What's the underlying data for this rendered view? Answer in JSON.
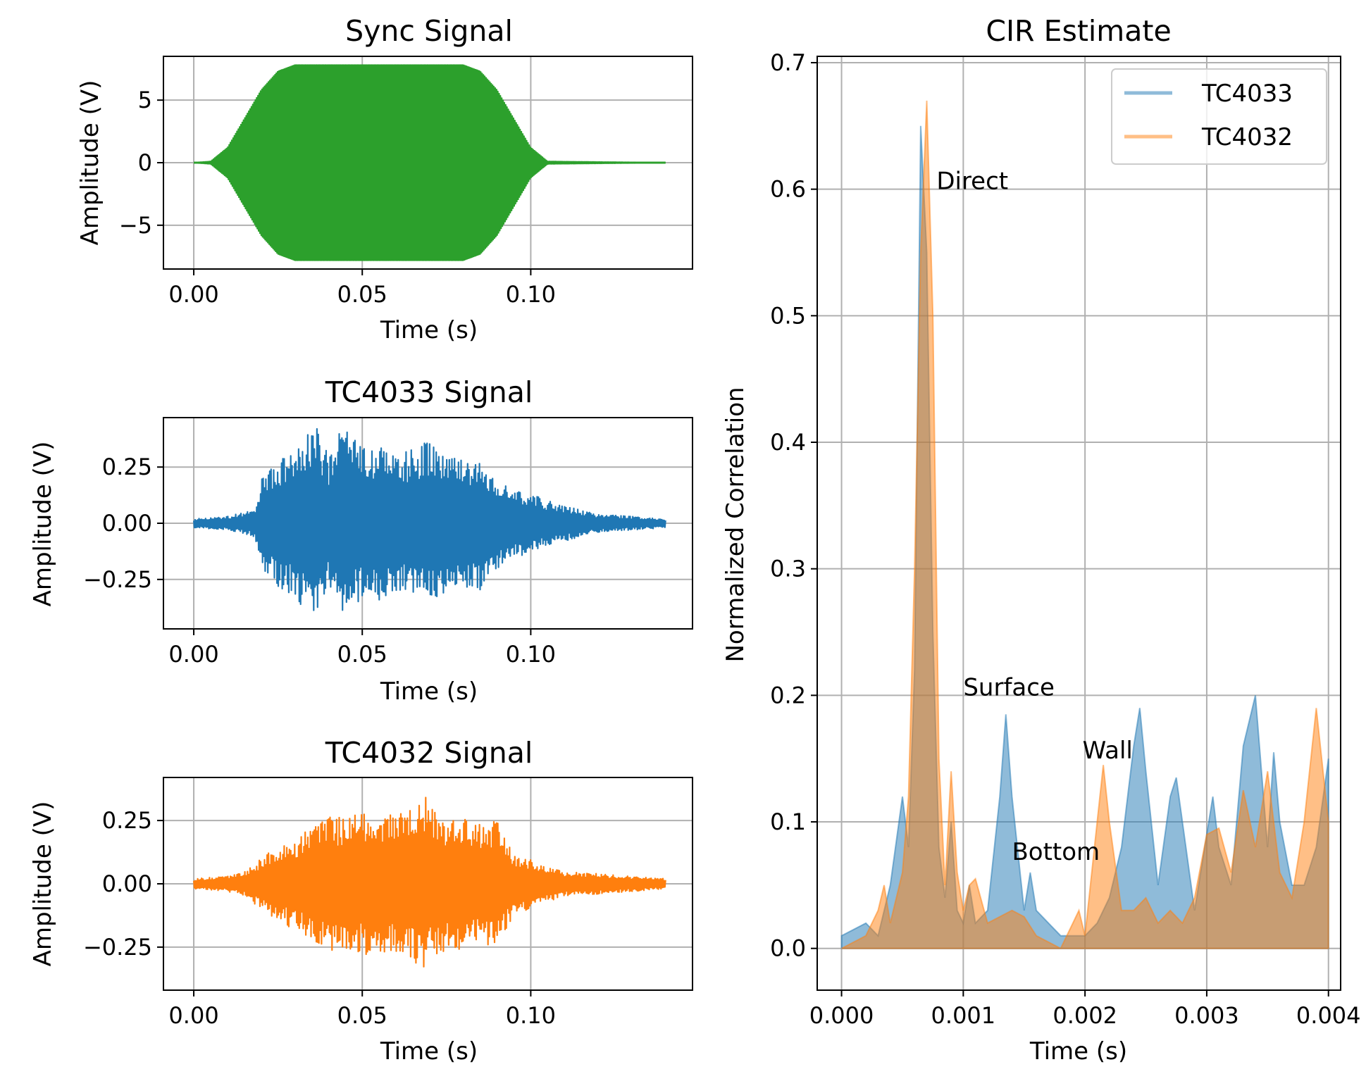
{
  "chart_data": [
    {
      "id": "sync",
      "type": "line",
      "title": "Sync Signal",
      "xlabel": "Time (s)",
      "ylabel": "Amplitude (V)",
      "xlim": [
        -0.009,
        0.148
      ],
      "ylim": [
        -8.5,
        8.5
      ],
      "xticks": [
        0.0,
        0.05,
        0.1
      ],
      "xtick_labels": [
        "0.00",
        "0.05",
        "0.10"
      ],
      "yticks": [
        5,
        0,
        -5
      ],
      "ytick_labels": [
        "5",
        "0",
        "−5"
      ],
      "grid": true,
      "color": "#2ca02c",
      "series": [
        {
          "name": "Sync",
          "envelope_x": [
            0.0,
            0.005,
            0.01,
            0.015,
            0.02,
            0.025,
            0.03,
            0.08,
            0.085,
            0.09,
            0.095,
            0.1,
            0.105,
            0.14
          ],
          "envelope_y": [
            0.0,
            0.1,
            1.2,
            3.5,
            5.8,
            7.3,
            7.8,
            7.8,
            7.3,
            5.8,
            3.5,
            1.2,
            0.1,
            0.0
          ]
        }
      ]
    },
    {
      "id": "tc4033",
      "type": "line",
      "title": "TC4033 Signal",
      "xlabel": "Time (s)",
      "ylabel": "Amplitude (V)",
      "xlim": [
        -0.009,
        0.148
      ],
      "ylim": [
        -0.47,
        0.47
      ],
      "xticks": [
        0.0,
        0.05,
        0.1
      ],
      "xtick_labels": [
        "0.00",
        "0.05",
        "0.10"
      ],
      "yticks": [
        0.25,
        0.0,
        -0.25
      ],
      "ytick_labels": [
        "0.25",
        "0.00",
        "−0.25"
      ],
      "grid": true,
      "color": "#1f77b4",
      "series": [
        {
          "name": "TC4033",
          "envelope_x": [
            0.0,
            0.01,
            0.018,
            0.02,
            0.025,
            0.03,
            0.036,
            0.04,
            0.044,
            0.05,
            0.056,
            0.06,
            0.065,
            0.07,
            0.075,
            0.08,
            0.085,
            0.09,
            0.095,
            0.1,
            0.105,
            0.11,
            0.115,
            0.12,
            0.13,
            0.14
          ],
          "envelope_y": [
            0.02,
            0.03,
            0.06,
            0.2,
            0.28,
            0.33,
            0.44,
            0.3,
            0.44,
            0.33,
            0.35,
            0.3,
            0.33,
            0.38,
            0.31,
            0.29,
            0.3,
            0.21,
            0.16,
            0.13,
            0.1,
            0.08,
            0.06,
            0.04,
            0.03,
            0.02
          ]
        }
      ]
    },
    {
      "id": "tc4032",
      "type": "line",
      "title": "TC4032 Signal",
      "xlabel": "Time (s)",
      "ylabel": "Amplitude (V)",
      "xlim": [
        -0.009,
        0.148
      ],
      "ylim": [
        -0.42,
        0.42
      ],
      "xticks": [
        0.0,
        0.05,
        0.1
      ],
      "xtick_labels": [
        "0.00",
        "0.05",
        "0.10"
      ],
      "yticks": [
        0.25,
        0.0,
        -0.25
      ],
      "ytick_labels": [
        "0.25",
        "0.00",
        "−0.25"
      ],
      "grid": true,
      "color": "#ff7f0e",
      "series": [
        {
          "name": "TC4032",
          "envelope_x": [
            0.0,
            0.01,
            0.015,
            0.02,
            0.025,
            0.03,
            0.035,
            0.04,
            0.045,
            0.05,
            0.055,
            0.06,
            0.065,
            0.068,
            0.07,
            0.075,
            0.08,
            0.085,
            0.09,
            0.095,
            0.1,
            0.105,
            0.11,
            0.12,
            0.13,
            0.14
          ],
          "envelope_y": [
            0.02,
            0.03,
            0.05,
            0.1,
            0.15,
            0.18,
            0.22,
            0.27,
            0.26,
            0.28,
            0.3,
            0.27,
            0.3,
            0.37,
            0.3,
            0.26,
            0.26,
            0.24,
            0.25,
            0.12,
            0.1,
            0.07,
            0.05,
            0.04,
            0.03,
            0.02
          ]
        }
      ]
    },
    {
      "id": "cir",
      "type": "area",
      "title": "CIR Estimate",
      "xlabel": "Time (s)",
      "ylabel": "Normalized Correlation",
      "xlim": [
        -0.0002,
        0.0041
      ],
      "ylim": [
        -0.033,
        0.705
      ],
      "xticks": [
        0.0,
        0.001,
        0.002,
        0.003,
        0.004
      ],
      "xtick_labels": [
        "0.000",
        "0.001",
        "0.002",
        "0.003",
        "0.004"
      ],
      "yticks": [
        0.0,
        0.1,
        0.2,
        0.3,
        0.4,
        0.5,
        0.6,
        0.7
      ],
      "ytick_labels": [
        "0.0",
        "0.1",
        "0.2",
        "0.3",
        "0.4",
        "0.5",
        "0.6",
        "0.7"
      ],
      "grid": true,
      "legend_position": "top-right",
      "series": [
        {
          "name": "TC4033",
          "color": "#1f77b4",
          "x": [
            0.0,
            0.0002,
            0.0003,
            0.0004,
            0.0005,
            0.00055,
            0.0006,
            0.00065,
            0.0007,
            0.00075,
            0.0008,
            0.00085,
            0.0009,
            0.00095,
            0.001,
            0.00105,
            0.0011,
            0.0012,
            0.0013,
            0.00135,
            0.0014,
            0.0015,
            0.00155,
            0.0016,
            0.0017,
            0.0018,
            0.0019,
            0.002,
            0.0021,
            0.0022,
            0.0023,
            0.0024,
            0.00245,
            0.0025,
            0.0026,
            0.0027,
            0.00275,
            0.0028,
            0.0029,
            0.003,
            0.00305,
            0.0031,
            0.0032,
            0.0033,
            0.0034,
            0.0035,
            0.00355,
            0.0036,
            0.0037,
            0.0038,
            0.0039,
            0.004
          ],
          "y": [
            0.01,
            0.02,
            0.01,
            0.05,
            0.12,
            0.08,
            0.22,
            0.65,
            0.55,
            0.25,
            0.08,
            0.04,
            0.1,
            0.03,
            0.02,
            0.05,
            0.02,
            0.03,
            0.12,
            0.185,
            0.12,
            0.03,
            0.06,
            0.03,
            0.02,
            0.01,
            0.01,
            0.01,
            0.02,
            0.04,
            0.08,
            0.16,
            0.19,
            0.14,
            0.05,
            0.12,
            0.135,
            0.1,
            0.03,
            0.09,
            0.12,
            0.08,
            0.05,
            0.16,
            0.2,
            0.08,
            0.155,
            0.1,
            0.05,
            0.05,
            0.08,
            0.15
          ]
        },
        {
          "name": "TC4032",
          "color": "#ff7f0e",
          "x": [
            0.0,
            0.0002,
            0.0003,
            0.00035,
            0.0004,
            0.0005,
            0.00055,
            0.0006,
            0.00065,
            0.0007,
            0.00075,
            0.0008,
            0.00085,
            0.0009,
            0.00095,
            0.001,
            0.00105,
            0.0011,
            0.0012,
            0.0013,
            0.0014,
            0.0015,
            0.0016,
            0.0017,
            0.0018,
            0.0019,
            0.00195,
            0.002,
            0.0021,
            0.00215,
            0.0022,
            0.0023,
            0.0024,
            0.0025,
            0.0026,
            0.0027,
            0.0028,
            0.0029,
            0.003,
            0.0031,
            0.0032,
            0.0033,
            0.0034,
            0.0035,
            0.0036,
            0.0037,
            0.0038,
            0.0039,
            0.004
          ],
          "y": [
            0.0,
            0.01,
            0.03,
            0.05,
            0.02,
            0.06,
            0.12,
            0.3,
            0.55,
            0.67,
            0.5,
            0.15,
            0.05,
            0.14,
            0.06,
            0.03,
            0.05,
            0.055,
            0.02,
            0.025,
            0.03,
            0.025,
            0.01,
            0.005,
            0.0,
            0.02,
            0.03,
            0.01,
            0.1,
            0.145,
            0.1,
            0.03,
            0.03,
            0.04,
            0.02,
            0.03,
            0.02,
            0.04,
            0.09,
            0.095,
            0.06,
            0.125,
            0.08,
            0.14,
            0.06,
            0.04,
            0.1,
            0.19,
            0.1
          ]
        }
      ],
      "annotations": [
        {
          "text": "Direct",
          "x": 0.00078,
          "y": 0.6
        },
        {
          "text": "Surface",
          "x": 0.001,
          "y": 0.2
        },
        {
          "text": "Wall",
          "x": 0.00198,
          "y": 0.15
        },
        {
          "text": "Bottom",
          "x": 0.0014,
          "y": 0.07
        }
      ]
    }
  ]
}
